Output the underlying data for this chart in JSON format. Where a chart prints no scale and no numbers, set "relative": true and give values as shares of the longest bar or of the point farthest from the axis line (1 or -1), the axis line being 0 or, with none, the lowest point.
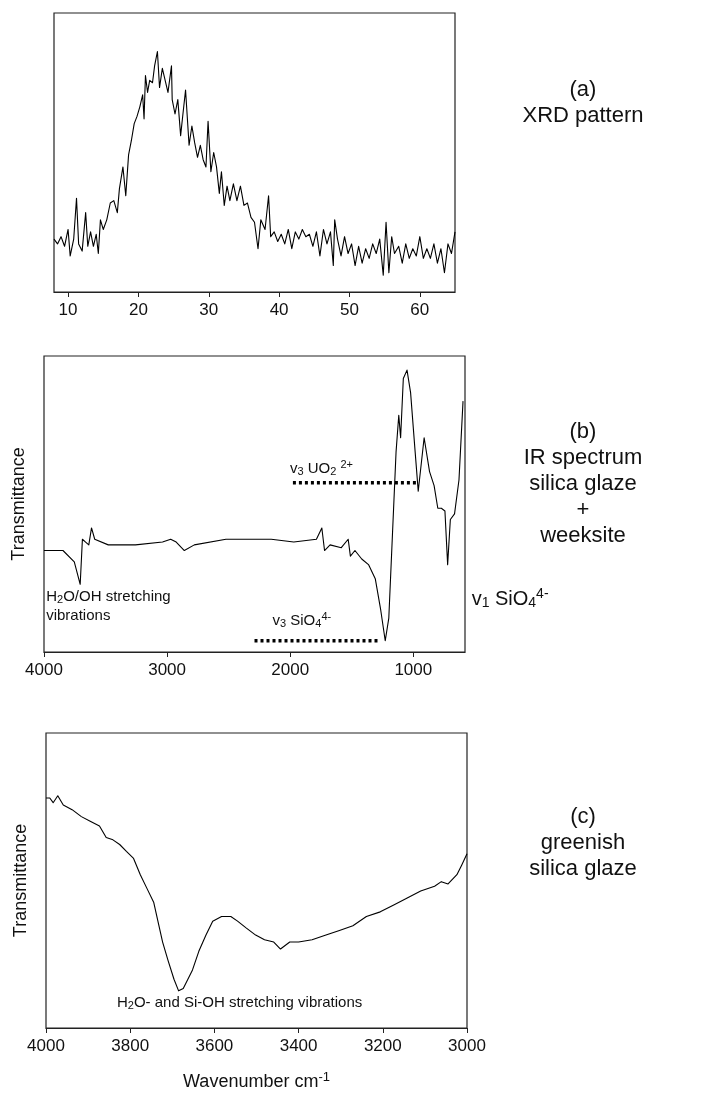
{
  "chart_data": [
    {
      "type": "line",
      "annotations": [
        "(a)",
        "XRD pattern"
      ],
      "relative": true,
      "xlim": [
        8,
        65
      ],
      "xticks": [
        10,
        20,
        30,
        40,
        50,
        60
      ],
      "marker": "none",
      "line_style": "solid",
      "series": [
        {
          "color": "#000000",
          "x": [
            8.0,
            8.5,
            9,
            9.5,
            10,
            10.3,
            10.8,
            11.2,
            11.5,
            12,
            12.5,
            12.8,
            13.2,
            13.6,
            14,
            14.3,
            14.6,
            15,
            15.5,
            16,
            16.5,
            17,
            17.3,
            17.8,
            18.2,
            18.6,
            19,
            19.4,
            19.8,
            20.2,
            20.6,
            20.8,
            21.0,
            21.3,
            21.6,
            22.0,
            22.3,
            22.7,
            23.0,
            23.4,
            23.8,
            24.2,
            24.7,
            24.8,
            25.2,
            25.6,
            26.0,
            26.4,
            26.7,
            27.2,
            27.6,
            28.0,
            28.4,
            28.8,
            29.2,
            29.6,
            29.9,
            30.3,
            30.7,
            31.1,
            31.5,
            31.8,
            32.2,
            32.6,
            33.0,
            33.5,
            34.0,
            34.5,
            35.0,
            35.5,
            36.0,
            36.5,
            37.0,
            37.4,
            38.0,
            38.5,
            38.8,
            39.3,
            39.8,
            40.3,
            40.8,
            41.3,
            41.8,
            42.3,
            42.8,
            43.3,
            43.8,
            44.3,
            44.8,
            45.3,
            45.8,
            46.3,
            46.8,
            47.3,
            47.7,
            47.9,
            48.3,
            48.8,
            49.3,
            49.8,
            50.3,
            50.8,
            51.3,
            51.8,
            52.3,
            52.8,
            53.3,
            53.8,
            54.3,
            54.8,
            55.2,
            55.6,
            56.0,
            56.4,
            57.0,
            57.5,
            58.0,
            58.5,
            59.0,
            59.5,
            60.0,
            60.5,
            61.0,
            61.5,
            62.0,
            62.5,
            63.0,
            63.5,
            64.0,
            64.5,
            65.0
          ],
          "values": [
            0.22,
            0.2,
            0.23,
            0.19,
            0.26,
            0.15,
            0.22,
            0.39,
            0.2,
            0.17,
            0.33,
            0.19,
            0.25,
            0.19,
            0.24,
            0.16,
            0.3,
            0.26,
            0.3,
            0.37,
            0.38,
            0.33,
            0.43,
            0.52,
            0.4,
            0.57,
            0.63,
            0.7,
            0.73,
            0.77,
            0.82,
            0.72,
            0.9,
            0.83,
            0.88,
            0.87,
            0.94,
            1.0,
            0.85,
            0.93,
            0.88,
            0.83,
            0.94,
            0.8,
            0.74,
            0.8,
            0.65,
            0.76,
            0.84,
            0.61,
            0.69,
            0.62,
            0.56,
            0.61,
            0.55,
            0.52,
            0.71,
            0.5,
            0.58,
            0.52,
            0.41,
            0.5,
            0.36,
            0.44,
            0.38,
            0.45,
            0.38,
            0.44,
            0.36,
            0.37,
            0.31,
            0.29,
            0.18,
            0.3,
            0.26,
            0.4,
            0.23,
            0.25,
            0.21,
            0.24,
            0.2,
            0.26,
            0.18,
            0.25,
            0.22,
            0.26,
            0.23,
            0.24,
            0.19,
            0.25,
            0.15,
            0.26,
            0.2,
            0.25,
            0.11,
            0.3,
            0.22,
            0.15,
            0.23,
            0.16,
            0.2,
            0.11,
            0.19,
            0.12,
            0.18,
            0.14,
            0.2,
            0.16,
            0.22,
            0.07,
            0.29,
            0.08,
            0.23,
            0.16,
            0.19,
            0.12,
            0.2,
            0.14,
            0.18,
            0.15,
            0.23,
            0.14,
            0.18,
            0.14,
            0.2,
            0.12,
            0.18,
            0.08,
            0.2,
            0.16,
            0.25
          ]
        }
      ]
    },
    {
      "type": "line",
      "ylabel": "Transmittance",
      "relative": true,
      "xlim": [
        4000,
        580
      ],
      "xticks": [
        4000,
        3000,
        2000,
        1000
      ],
      "marker": "none",
      "line_style": "solid",
      "annotations": [
        "(b)",
        "IR spectrum\nsilica glaze\n+\nweeksite",
        {
          "text": "H$_{2}$O/OH stretching\nvibrations",
          "x": 3706,
          "y": 0.24
        },
        {
          "text": "v$_{3}$ UO$_{2}$ $^{2+}$",
          "x": 1978,
          "y": 0.6
        },
        {
          "text": "v$_{3}$ SiO$_{4}$$^{4-}$",
          "x": 2290,
          "y": 0.04
        },
        {
          "text": "v$_{1}$ SiO$_{4}$$^{4-}$",
          "x": 721,
          "y": 0.31
        }
      ],
      "series": [
        {
          "color": "#000000",
          "x": [
            4000,
            3846,
            3754,
            3706,
            3688,
            3662,
            3636,
            3614,
            3588,
            3478,
            3257,
            3037,
            2971,
            2926,
            2860,
            2779,
            2522,
            2338,
            2154,
            1971,
            1787,
            1743,
            1721,
            1676,
            1585,
            1529,
            1511,
            1474,
            1419,
            1364,
            1309,
            1265,
            1228,
            1199,
            1169,
            1140,
            1118,
            1103,
            1081,
            1051,
            1022,
            985,
            960,
            912,
            868,
            831,
            801,
            772,
            743,
            721,
            699,
            665,
            629,
            596
          ],
          "values": [
            0.36,
            0.36,
            0.32,
            0.24,
            0.4,
            0.39,
            0.38,
            0.44,
            0.4,
            0.38,
            0.38,
            0.39,
            0.4,
            0.39,
            0.36,
            0.38,
            0.4,
            0.4,
            0.4,
            0.39,
            0.4,
            0.44,
            0.36,
            0.38,
            0.37,
            0.4,
            0.34,
            0.36,
            0.33,
            0.31,
            0.26,
            0.15,
            0.04,
            0.12,
            0.42,
            0.71,
            0.84,
            0.76,
            0.97,
            1.0,
            0.92,
            0.71,
            0.57,
            0.76,
            0.64,
            0.59,
            0.51,
            0.51,
            0.5,
            0.31,
            0.47,
            0.49,
            0.61,
            0.89
          ]
        },
        {
          "color": "#000000",
          "line_style": "dotted",
          "x": [
            1978,
            971
          ],
          "values": [
            0.6,
            0.6
          ]
        },
        {
          "color": "#000000",
          "line_style": "dotted",
          "x": [
            2290,
            1287
          ],
          "values": [
            0.04,
            0.04
          ]
        }
      ]
    },
    {
      "type": "line",
      "xlabel": "Wavenumber cm$^{-1}$",
      "ylabel": "Transmittance",
      "relative": true,
      "xlim": [
        4000,
        3000
      ],
      "xticks": [
        4000,
        3800,
        3600,
        3400,
        3200,
        3000
      ],
      "marker": "none",
      "line_style": "solid",
      "annotations": [
        "(c)",
        "greenish\nsilica glaze",
        {
          "text": "H$_{2}$O- and Si-OH stretching vibrations",
          "x": 3685,
          "y": 0.16
        }
      ],
      "series": [
        {
          "color": "#000000",
          "x": [
            4000,
            3991,
            3983,
            3972,
            3959,
            3938,
            3916,
            3895,
            3873,
            3857,
            3841,
            3825,
            3809,
            3792,
            3776,
            3760,
            3744,
            3733,
            3723,
            3710,
            3696,
            3685,
            3674,
            3663,
            3652,
            3637,
            3620,
            3604,
            3583,
            3561,
            3545,
            3524,
            3502,
            3481,
            3459,
            3443,
            3421,
            3400,
            3368,
            3335,
            3303,
            3271,
            3239,
            3206,
            3174,
            3142,
            3110,
            3077,
            3061,
            3045,
            3024,
            3013,
            3000
          ],
          "values": [
            0.99,
            0.99,
            0.97,
            1.0,
            0.96,
            0.94,
            0.91,
            0.89,
            0.87,
            0.82,
            0.81,
            0.79,
            0.76,
            0.73,
            0.66,
            0.6,
            0.54,
            0.45,
            0.37,
            0.29,
            0.21,
            0.16,
            0.17,
            0.21,
            0.25,
            0.33,
            0.4,
            0.46,
            0.48,
            0.48,
            0.46,
            0.43,
            0.4,
            0.38,
            0.37,
            0.34,
            0.37,
            0.37,
            0.38,
            0.4,
            0.42,
            0.44,
            0.48,
            0.5,
            0.53,
            0.56,
            0.59,
            0.61,
            0.63,
            0.62,
            0.66,
            0.7,
            0.75
          ]
        }
      ]
    }
  ]
}
